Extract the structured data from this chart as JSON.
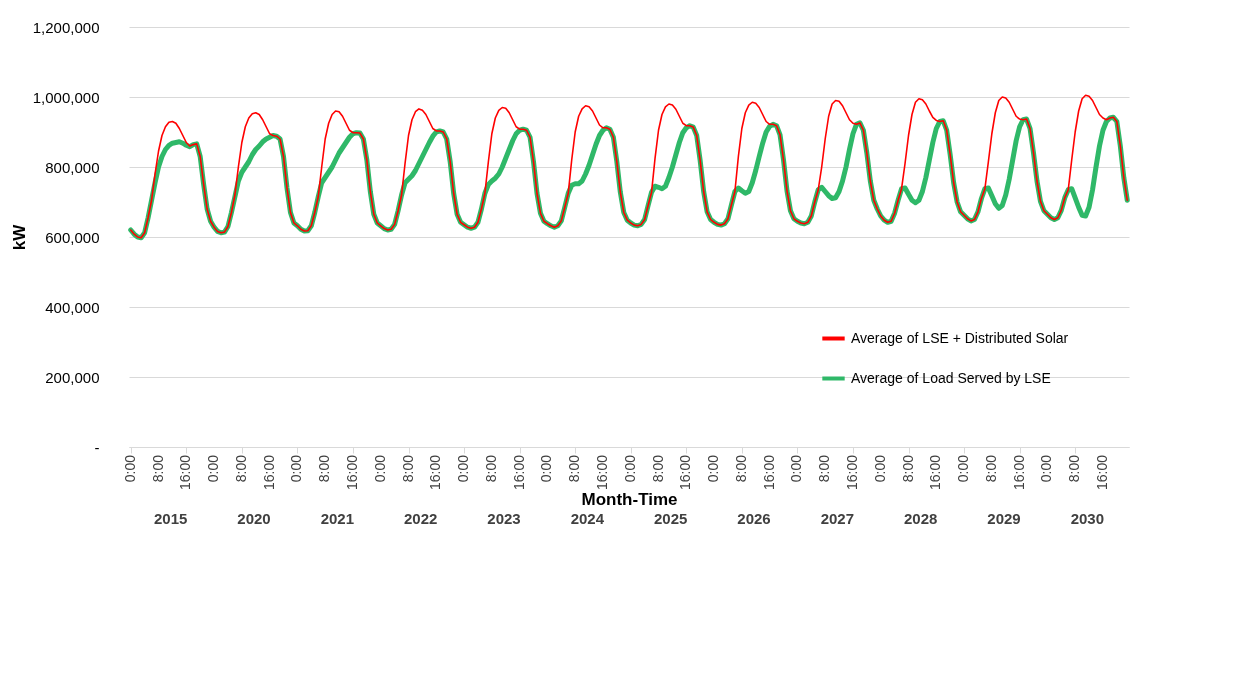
{
  "chart_data": {
    "type": "line",
    "xlabel": "Month-Time",
    "ylabel": "kW",
    "categories": [
      "0:00",
      null,
      null,
      null,
      null,
      null,
      null,
      null,
      "8:00",
      null,
      null,
      null,
      null,
      null,
      null,
      null,
      "16:00",
      null,
      null,
      null,
      null,
      null,
      null,
      null,
      "0:00",
      null,
      null,
      null,
      null,
      null,
      null,
      null,
      "8:00",
      null,
      null,
      null,
      null,
      null,
      null,
      null,
      "16:00",
      null,
      null,
      null,
      null,
      null,
      null,
      null,
      "0:00",
      null,
      null,
      null,
      null,
      null,
      null,
      null,
      "8:00",
      null,
      null,
      null,
      null,
      null,
      null,
      null,
      "16:00",
      null,
      null,
      null,
      null,
      null,
      null,
      null,
      "0:00",
      null,
      null,
      null,
      null,
      null,
      null,
      null,
      "8:00",
      null,
      null,
      null,
      null,
      null,
      null,
      null,
      "16:00",
      null,
      null,
      null,
      null,
      null,
      null,
      null,
      "0:00",
      null,
      null,
      null,
      null,
      null,
      null,
      null,
      "8:00",
      null,
      null,
      null,
      null,
      null,
      null,
      null,
      "16:00",
      null,
      null,
      null,
      null,
      null,
      null,
      null,
      "0:00",
      null,
      null,
      null,
      null,
      null,
      null,
      null,
      "8:00",
      null,
      null,
      null,
      null,
      null,
      null,
      null,
      "16:00",
      null,
      null,
      null,
      null,
      null,
      null,
      null,
      "0:00",
      null,
      null,
      null,
      null,
      null,
      null,
      null,
      "8:00",
      null,
      null,
      null,
      null,
      null,
      null,
      null,
      "16:00",
      null,
      null,
      null,
      null,
      null,
      null,
      null,
      "0:00",
      null,
      null,
      null,
      null,
      null,
      null,
      null,
      "8:00",
      null,
      null,
      null,
      null,
      null,
      null,
      null,
      "16:00",
      null,
      null,
      null,
      null,
      null,
      null,
      null,
      "0:00",
      null,
      null,
      null,
      null,
      null,
      null,
      null,
      "8:00",
      null,
      null,
      null,
      null,
      null,
      null,
      null,
      "16:00",
      null,
      null,
      null,
      null,
      null,
      null,
      null,
      "0:00",
      null,
      null,
      null,
      null,
      null,
      null,
      null,
      "8:00",
      null,
      null,
      null,
      null,
      null,
      null,
      null,
      "16:00",
      null,
      null,
      null,
      null,
      null,
      null,
      null,
      "0:00",
      null,
      null,
      null,
      null,
      null,
      null,
      null,
      "8:00",
      null,
      null,
      null,
      null,
      null,
      null,
      null,
      "16:00",
      null,
      null,
      null,
      null,
      null,
      null,
      null,
      "0:00",
      null,
      null,
      null,
      null,
      null,
      null,
      null,
      "8:00",
      null,
      null,
      null,
      null,
      null,
      null,
      null,
      "16:00",
      null,
      null,
      null,
      null,
      null,
      null,
      null
    ],
    "annotations": [
      "2015",
      "2020",
      "2021",
      "2022",
      "2023",
      "2024",
      "2025",
      "2026",
      "2027",
      "2028",
      "2029",
      "2030"
    ],
    "ylim": [
      0,
      1200000
    ],
    "yticks": [
      {
        "value": 0,
        "label": "-"
      },
      {
        "value": 200000,
        "label": "200,000"
      },
      {
        "value": 400000,
        "label": "400,000"
      },
      {
        "value": 600000,
        "label": "600,000"
      },
      {
        "value": 800000,
        "label": "800,000"
      },
      {
        "value": 1000000,
        "label": "1,000,000"
      },
      {
        "value": 1200000,
        "label": "1,200,000"
      }
    ],
    "grid": "y",
    "legend": "bottom right",
    "marker": "none",
    "line_style": "solid",
    "series": [
      {
        "name": "Average of LSE + Distributed Solar",
        "color": "#ff0000",
        "values": [
          620000,
          608000,
          600000,
          598000,
          612000,
          655000,
          705000,
          780000,
          845000,
          890000,
          915000,
          928000,
          930000,
          925000,
          910000,
          890000,
          870000,
          860000,
          864000,
          866000,
          830000,
          750000,
          680000,
          645000,
          628000,
          616000,
          612000,
          614000,
          630000,
          670000,
          720000,
          800000,
          870000,
          915000,
          940000,
          952000,
          955000,
          950000,
          935000,
          915000,
          895000,
          890000,
          888000,
          880000,
          830000,
          740000,
          670000,
          640000,
          632000,
          622000,
          617000,
          618000,
          632000,
          670000,
          715000,
          800000,
          880000,
          925000,
          950000,
          960000,
          958000,
          945000,
          925000,
          905000,
          898000,
          898000,
          897000,
          880000,
          820000,
          730000,
          665000,
          640000,
          632000,
          624000,
          620000,
          622000,
          636000,
          675000,
          720000,
          810000,
          890000,
          935000,
          958000,
          966000,
          962000,
          950000,
          930000,
          910000,
          903000,
          903000,
          900000,
          880000,
          815000,
          725000,
          665000,
          642000,
          635000,
          628000,
          625000,
          628000,
          642000,
          680000,
          725000,
          815000,
          895000,
          940000,
          962000,
          970000,
          968000,
          955000,
          935000,
          915000,
          908000,
          908000,
          905000,
          885000,
          815000,
          725000,
          668000,
          645000,
          638000,
          632000,
          628000,
          632000,
          646000,
          685000,
          725000,
          820000,
          900000,
          945000,
          966000,
          975000,
          972000,
          960000,
          940000,
          920000,
          912000,
          912000,
          908000,
          885000,
          815000,
          728000,
          670000,
          648000,
          640000,
          634000,
          632000,
          636000,
          650000,
          690000,
          728000,
          825000,
          905000,
          950000,
          972000,
          980000,
          977000,
          965000,
          945000,
          925000,
          918000,
          918000,
          914000,
          890000,
          818000,
          730000,
          672000,
          650000,
          642000,
          636000,
          634000,
          638000,
          652000,
          692000,
          730000,
          830000,
          910000,
          955000,
          977000,
          985000,
          982000,
          970000,
          950000,
          930000,
          922000,
          922000,
          918000,
          892000,
          820000,
          732000,
          675000,
          652000,
          645000,
          640000,
          638000,
          642000,
          660000,
          700000,
          735000,
          800000,
          880000,
          945000,
          980000,
          990000,
          988000,
          975000,
          955000,
          935000,
          925000,
          922000,
          926000,
          905000,
          840000,
          760000,
          705000,
          680000,
          660000,
          648000,
          642000,
          645000,
          668000,
          705000,
          738000,
          810000,
          890000,
          950000,
          985000,
          995000,
          992000,
          980000,
          960000,
          942000,
          933000,
          930000,
          932000,
          905000,
          835000,
          755000,
          700000,
          672000,
          662000,
          652000,
          646000,
          650000,
          672000,
          710000,
          738000,
          815000,
          895000,
          955000,
          990000,
          1000000,
          997000,
          985000,
          965000,
          945000,
          937000,
          935000,
          937000,
          910000,
          840000,
          760000,
          702000,
          675000,
          665000,
          655000,
          650000,
          655000,
          676000,
          712000,
          735000,
          820000,
          900000,
          960000,
          995000,
          1005000,
          1002000,
          990000,
          970000,
          950000,
          940000,
          935000,
          940000,
          942000,
          930000,
          860000,
          770000,
          705000
        ]
      },
      {
        "name": "Average of Load Served by LSE",
        "color": "#2fb868",
        "values": [
          620000,
          608000,
          600000,
          598000,
          612000,
          655000,
          705000,
          755000,
          800000,
          830000,
          850000,
          862000,
          868000,
          870000,
          872000,
          868000,
          862000,
          858000,
          864000,
          866000,
          830000,
          750000,
          680000,
          645000,
          628000,
          616000,
          612000,
          614000,
          630000,
          670000,
          715000,
          760000,
          785000,
          800000,
          815000,
          835000,
          850000,
          860000,
          872000,
          880000,
          885000,
          890000,
          888000,
          880000,
          830000,
          740000,
          670000,
          640000,
          632000,
          622000,
          617000,
          618000,
          632000,
          670000,
          715000,
          755000,
          770000,
          785000,
          800000,
          820000,
          840000,
          855000,
          870000,
          885000,
          895000,
          898000,
          897000,
          880000,
          820000,
          730000,
          665000,
          640000,
          632000,
          624000,
          620000,
          622000,
          636000,
          675000,
          720000,
          755000,
          765000,
          775000,
          790000,
          810000,
          830000,
          850000,
          870000,
          888000,
          900000,
          903000,
          900000,
          880000,
          815000,
          725000,
          665000,
          642000,
          635000,
          628000,
          625000,
          628000,
          642000,
          680000,
          725000,
          750000,
          760000,
          768000,
          780000,
          800000,
          825000,
          850000,
          875000,
          895000,
          905000,
          908000,
          905000,
          885000,
          815000,
          725000,
          668000,
          645000,
          638000,
          632000,
          628000,
          632000,
          646000,
          685000,
          725000,
          748000,
          752000,
          752000,
          760000,
          780000,
          805000,
          835000,
          865000,
          890000,
          905000,
          912000,
          908000,
          885000,
          815000,
          728000,
          670000,
          648000,
          640000,
          634000,
          632000,
          636000,
          650000,
          690000,
          728000,
          745000,
          742000,
          738000,
          745000,
          770000,
          800000,
          835000,
          870000,
          898000,
          912000,
          918000,
          914000,
          890000,
          818000,
          730000,
          672000,
          650000,
          642000,
          636000,
          634000,
          638000,
          652000,
          692000,
          730000,
          740000,
          732000,
          725000,
          730000,
          755000,
          790000,
          830000,
          868000,
          900000,
          916000,
          922000,
          918000,
          892000,
          820000,
          732000,
          675000,
          652000,
          645000,
          640000,
          638000,
          642000,
          660000,
          700000,
          735000,
          742000,
          730000,
          718000,
          710000,
          712000,
          730000,
          760000,
          800000,
          850000,
          895000,
          922000,
          926000,
          905000,
          840000,
          760000,
          705000,
          680000,
          660000,
          648000,
          642000,
          645000,
          668000,
          705000,
          738000,
          740000,
          722000,
          705000,
          698000,
          705000,
          730000,
          770000,
          820000,
          870000,
          910000,
          930000,
          932000,
          905000,
          835000,
          755000,
          700000,
          672000,
          662000,
          652000,
          646000,
          650000,
          672000,
          710000,
          738000,
          740000,
          718000,
          695000,
          682000,
          690000,
          720000,
          765000,
          820000,
          875000,
          915000,
          935000,
          937000,
          910000,
          840000,
          760000,
          702000,
          675000,
          665000,
          655000,
          650000,
          655000,
          676000,
          712000,
          735000,
          738000,
          712000,
          685000,
          662000,
          660000,
          685000,
          735000,
          800000,
          860000,
          905000,
          930000,
          940000,
          942000,
          930000,
          860000,
          770000,
          705000
        ]
      }
    ]
  }
}
